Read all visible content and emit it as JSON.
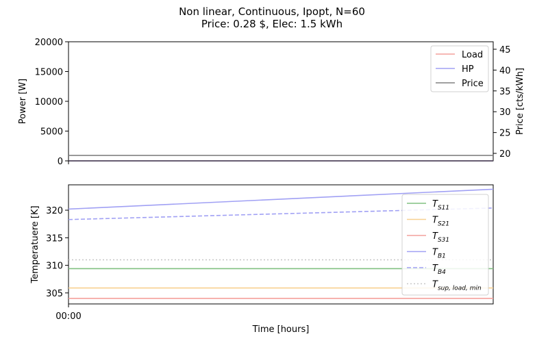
{
  "chart_data": [
    {
      "type": "line",
      "title_line1": "Non linear, Continuous, Ipopt, N=60",
      "title_line2": "Price: 0.28 $, Elec: 1.5 kWh",
      "ylabel": "Power [W]",
      "ylabel_right": "Price [cts/kWh]",
      "ylim": [
        0,
        20000
      ],
      "yticks": [
        "0",
        "5000",
        "10000",
        "15000",
        "20000"
      ],
      "yticks_values": [
        0,
        5000,
        10000,
        15000,
        20000
      ],
      "ylim_right": [
        18.2,
        46.8
      ],
      "yticks_right": [
        "20",
        "25",
        "30",
        "35",
        "40",
        "45"
      ],
      "yticks_right_values": [
        20,
        25,
        30,
        35,
        40,
        45
      ],
      "series": [
        {
          "name": "Load",
          "color": "#f4a09c",
          "style": "solid",
          "axis": "left",
          "values": [
            0,
            0
          ]
        },
        {
          "name": "HP",
          "color": "#a0a0f4",
          "style": "solid",
          "axis": "left",
          "values": [
            0,
            0
          ]
        },
        {
          "name": "Price",
          "color": "#808080",
          "style": "solid",
          "axis": "right",
          "values": [
            19.5,
            19.5
          ]
        }
      ],
      "legend_loc": "top-right"
    },
    {
      "type": "line",
      "ylabel": "Temperatuere [K]",
      "xlabel": "Time [hours]",
      "xticks": [
        "00:00"
      ],
      "ylim": [
        303.0,
        324.6
      ],
      "yticks": [
        "305",
        "310",
        "315",
        "320"
      ],
      "yticks_values": [
        305,
        310,
        315,
        320
      ],
      "series": [
        {
          "name": "T_S11",
          "label_main": "T",
          "label_sub": "S11",
          "color": "#80c080",
          "style": "solid",
          "values": [
            309.4,
            309.4
          ]
        },
        {
          "name": "T_S21",
          "label_main": "T",
          "label_sub": "S21",
          "color": "#f8d090",
          "style": "solid",
          "values": [
            305.9,
            305.9
          ]
        },
        {
          "name": "T_S31",
          "label_main": "T",
          "label_sub": "S31",
          "color": "#f4a09c",
          "style": "solid",
          "values": [
            304.0,
            304.0
          ]
        },
        {
          "name": "T_B1",
          "label_main": "T",
          "label_sub": "B1",
          "color": "#a0a0f4",
          "style": "solid",
          "values": [
            320.2,
            323.8
          ]
        },
        {
          "name": "T_B4",
          "label_main": "T",
          "label_sub": "B4",
          "color": "#a0a0f4",
          "style": "dashed",
          "values": [
            318.3,
            320.4
          ]
        },
        {
          "name": "T_sup,load,min",
          "label_main": "T",
          "label_sub": "sup, load, min",
          "color": "#c8c8c8",
          "style": "dotted",
          "values": [
            311.0,
            311.0
          ]
        }
      ],
      "legend_loc": "top-right"
    }
  ]
}
